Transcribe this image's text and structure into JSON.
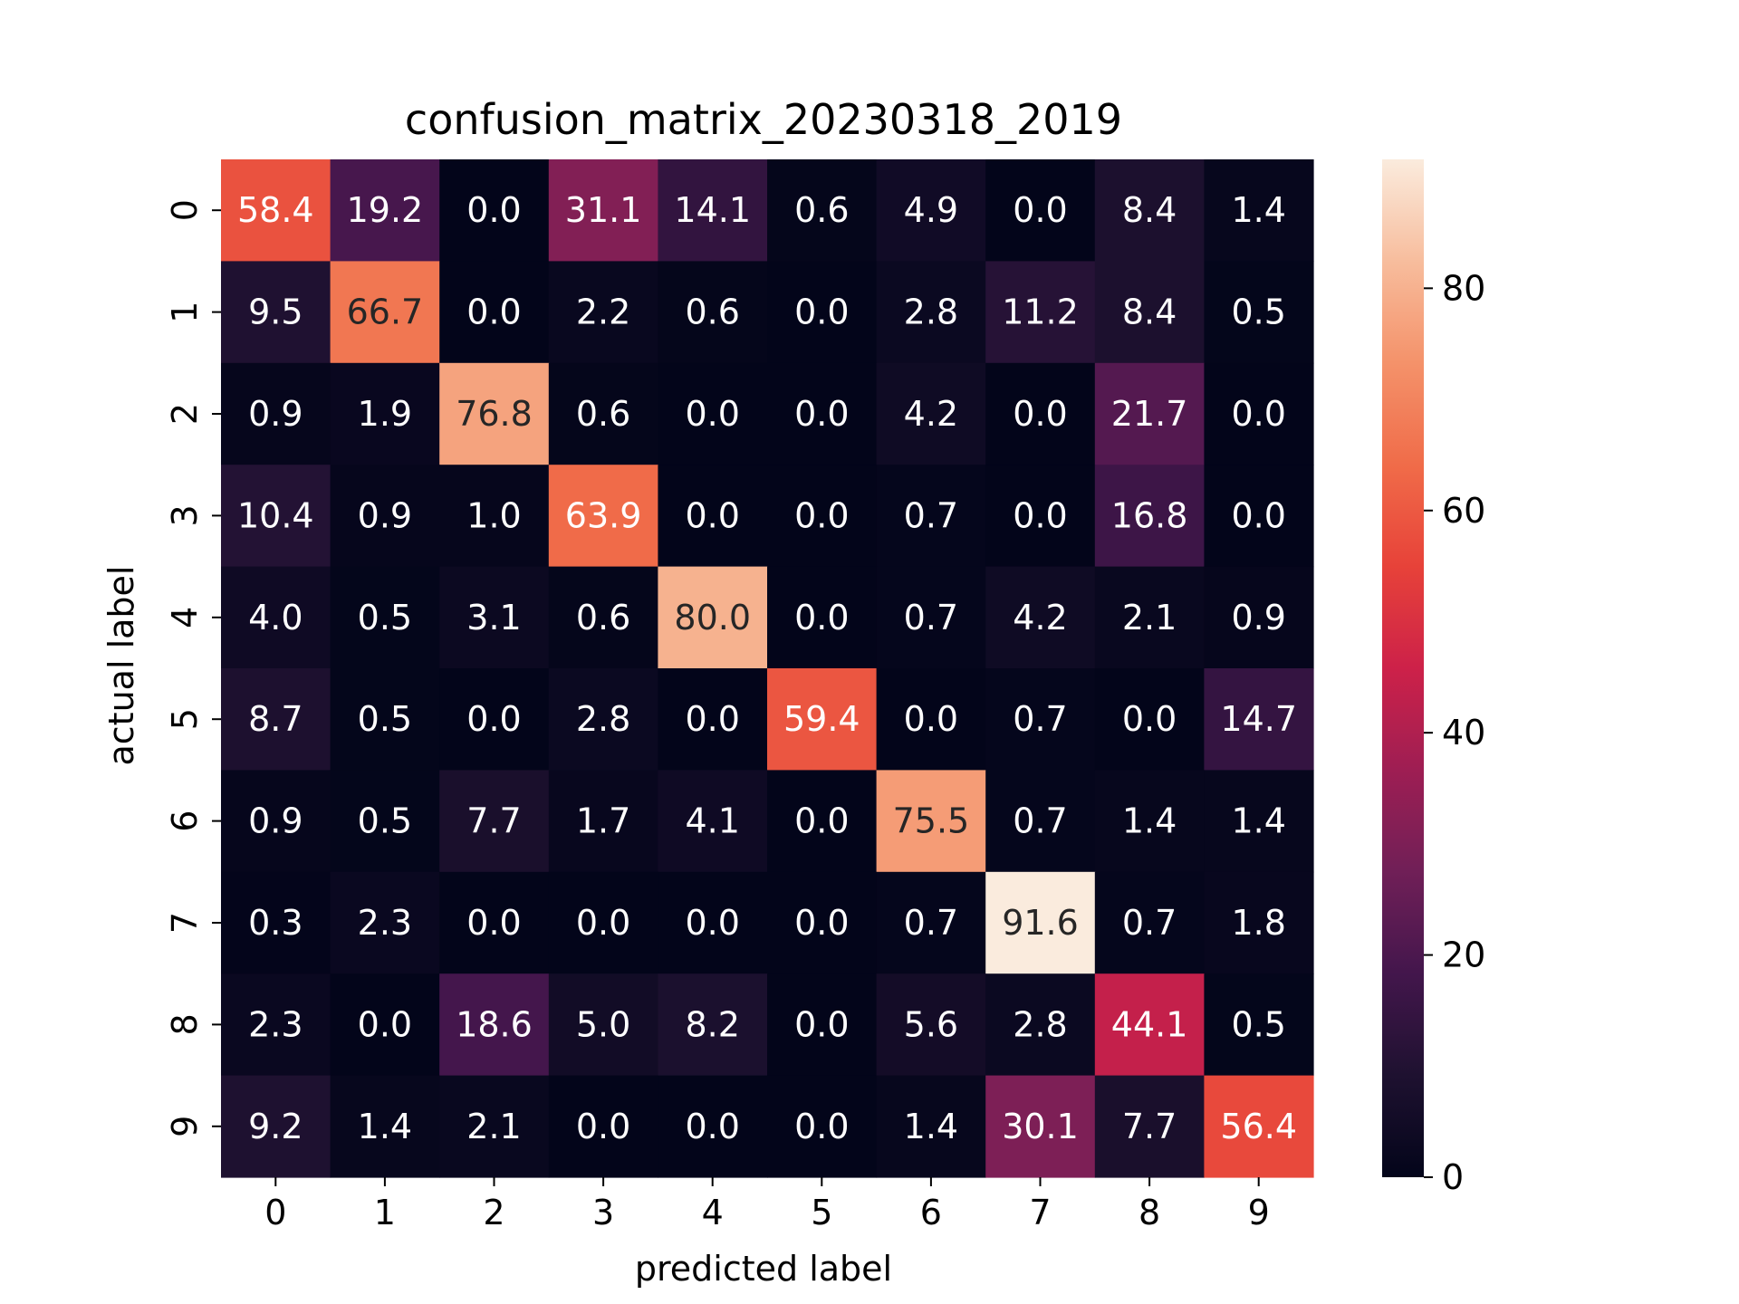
{
  "chart_data": {
    "type": "heatmap",
    "title": "confusion_matrix_20230318_2019",
    "xlabel": "predicted label",
    "ylabel": "actual label",
    "x_categories": [
      "0",
      "1",
      "2",
      "3",
      "4",
      "5",
      "6",
      "7",
      "8",
      "9"
    ],
    "y_categories": [
      "0",
      "1",
      "2",
      "3",
      "4",
      "5",
      "6",
      "7",
      "8",
      "9"
    ],
    "values": [
      [
        58.4,
        19.2,
        0.0,
        31.1,
        14.1,
        0.6,
        4.9,
        0.0,
        8.4,
        1.4
      ],
      [
        9.5,
        66.7,
        0.0,
        2.2,
        0.6,
        0.0,
        2.8,
        11.2,
        8.4,
        0.5
      ],
      [
        0.9,
        1.9,
        76.8,
        0.6,
        0.0,
        0.0,
        4.2,
        0.0,
        21.7,
        0.0
      ],
      [
        10.4,
        0.9,
        1.0,
        63.9,
        0.0,
        0.0,
        0.7,
        0.0,
        16.8,
        0.0
      ],
      [
        4.0,
        0.5,
        3.1,
        0.6,
        80.0,
        0.0,
        0.7,
        4.2,
        2.1,
        0.9
      ],
      [
        8.7,
        0.5,
        0.0,
        2.8,
        0.0,
        59.4,
        0.0,
        0.7,
        0.0,
        14.7
      ],
      [
        0.9,
        0.5,
        7.7,
        1.7,
        4.1,
        0.0,
        75.5,
        0.7,
        1.4,
        1.4
      ],
      [
        0.3,
        2.3,
        0.0,
        0.0,
        0.0,
        0.0,
        0.7,
        91.6,
        0.7,
        1.8
      ],
      [
        2.3,
        0.0,
        18.6,
        5.0,
        8.2,
        0.0,
        5.6,
        2.8,
        44.1,
        0.5
      ],
      [
        9.2,
        1.4,
        2.1,
        0.0,
        0.0,
        0.0,
        1.4,
        30.1,
        7.7,
        56.4
      ]
    ],
    "colorbar": {
      "min": 0,
      "max": 91.6,
      "ticks": [
        "0",
        "20",
        "40",
        "60",
        "80"
      ],
      "colormap": "rocket"
    }
  }
}
